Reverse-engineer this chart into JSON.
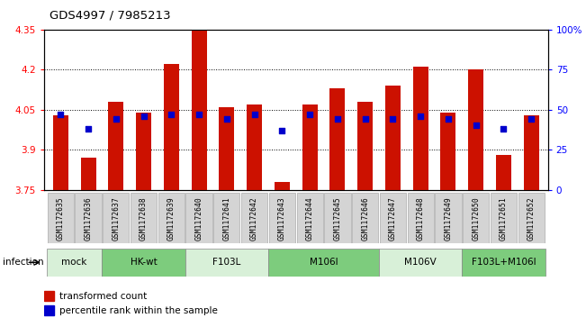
{
  "title": "GDS4997 / 7985213",
  "samples": [
    "GSM1172635",
    "GSM1172636",
    "GSM1172637",
    "GSM1172638",
    "GSM1172639",
    "GSM1172640",
    "GSM1172641",
    "GSM1172642",
    "GSM1172643",
    "GSM1172644",
    "GSM1172645",
    "GSM1172646",
    "GSM1172647",
    "GSM1172648",
    "GSM1172649",
    "GSM1172650",
    "GSM1172651",
    "GSM1172652"
  ],
  "bar_values": [
    4.03,
    3.87,
    4.08,
    4.04,
    4.22,
    4.35,
    4.06,
    4.07,
    3.78,
    4.07,
    4.13,
    4.08,
    4.14,
    4.21,
    4.04,
    4.2,
    3.88,
    4.03
  ],
  "blue_dot_values": [
    47,
    38,
    44,
    46,
    47,
    47,
    44,
    47,
    37,
    47,
    44,
    44,
    44,
    46,
    44,
    40,
    38,
    44
  ],
  "groups": [
    {
      "label": "mock",
      "start": 0,
      "end": 2,
      "color": "#d8f0d8"
    },
    {
      "label": "HK-wt",
      "start": 2,
      "end": 5,
      "color": "#7dcc7d"
    },
    {
      "label": "F103L",
      "start": 5,
      "end": 8,
      "color": "#d8f0d8"
    },
    {
      "label": "M106I",
      "start": 8,
      "end": 12,
      "color": "#7dcc7d"
    },
    {
      "label": "M106V",
      "start": 12,
      "end": 15,
      "color": "#d8f0d8"
    },
    {
      "label": "F103L+M106I",
      "start": 15,
      "end": 18,
      "color": "#7dcc7d"
    }
  ],
  "ylim_left": [
    3.75,
    4.35
  ],
  "ylim_right": [
    0,
    100
  ],
  "yticks_left": [
    3.75,
    3.9,
    4.05,
    4.2,
    4.35
  ],
  "yticks_right": [
    0,
    25,
    50,
    75,
    100
  ],
  "ytick_labels_left": [
    "3.75",
    "3.9",
    "4.05",
    "4.2",
    "4.35"
  ],
  "ytick_labels_right": [
    "0",
    "25",
    "50",
    "75",
    "100%"
  ],
  "grid_lines": [
    3.9,
    4.05,
    4.2
  ],
  "bar_color": "#cc1100",
  "dot_color": "#0000cc",
  "bar_width": 0.55,
  "infection_label": "infection",
  "legend_items": [
    "transformed count",
    "percentile rank within the sample"
  ],
  "legend_colors": [
    "#cc1100",
    "#0000cc"
  ]
}
